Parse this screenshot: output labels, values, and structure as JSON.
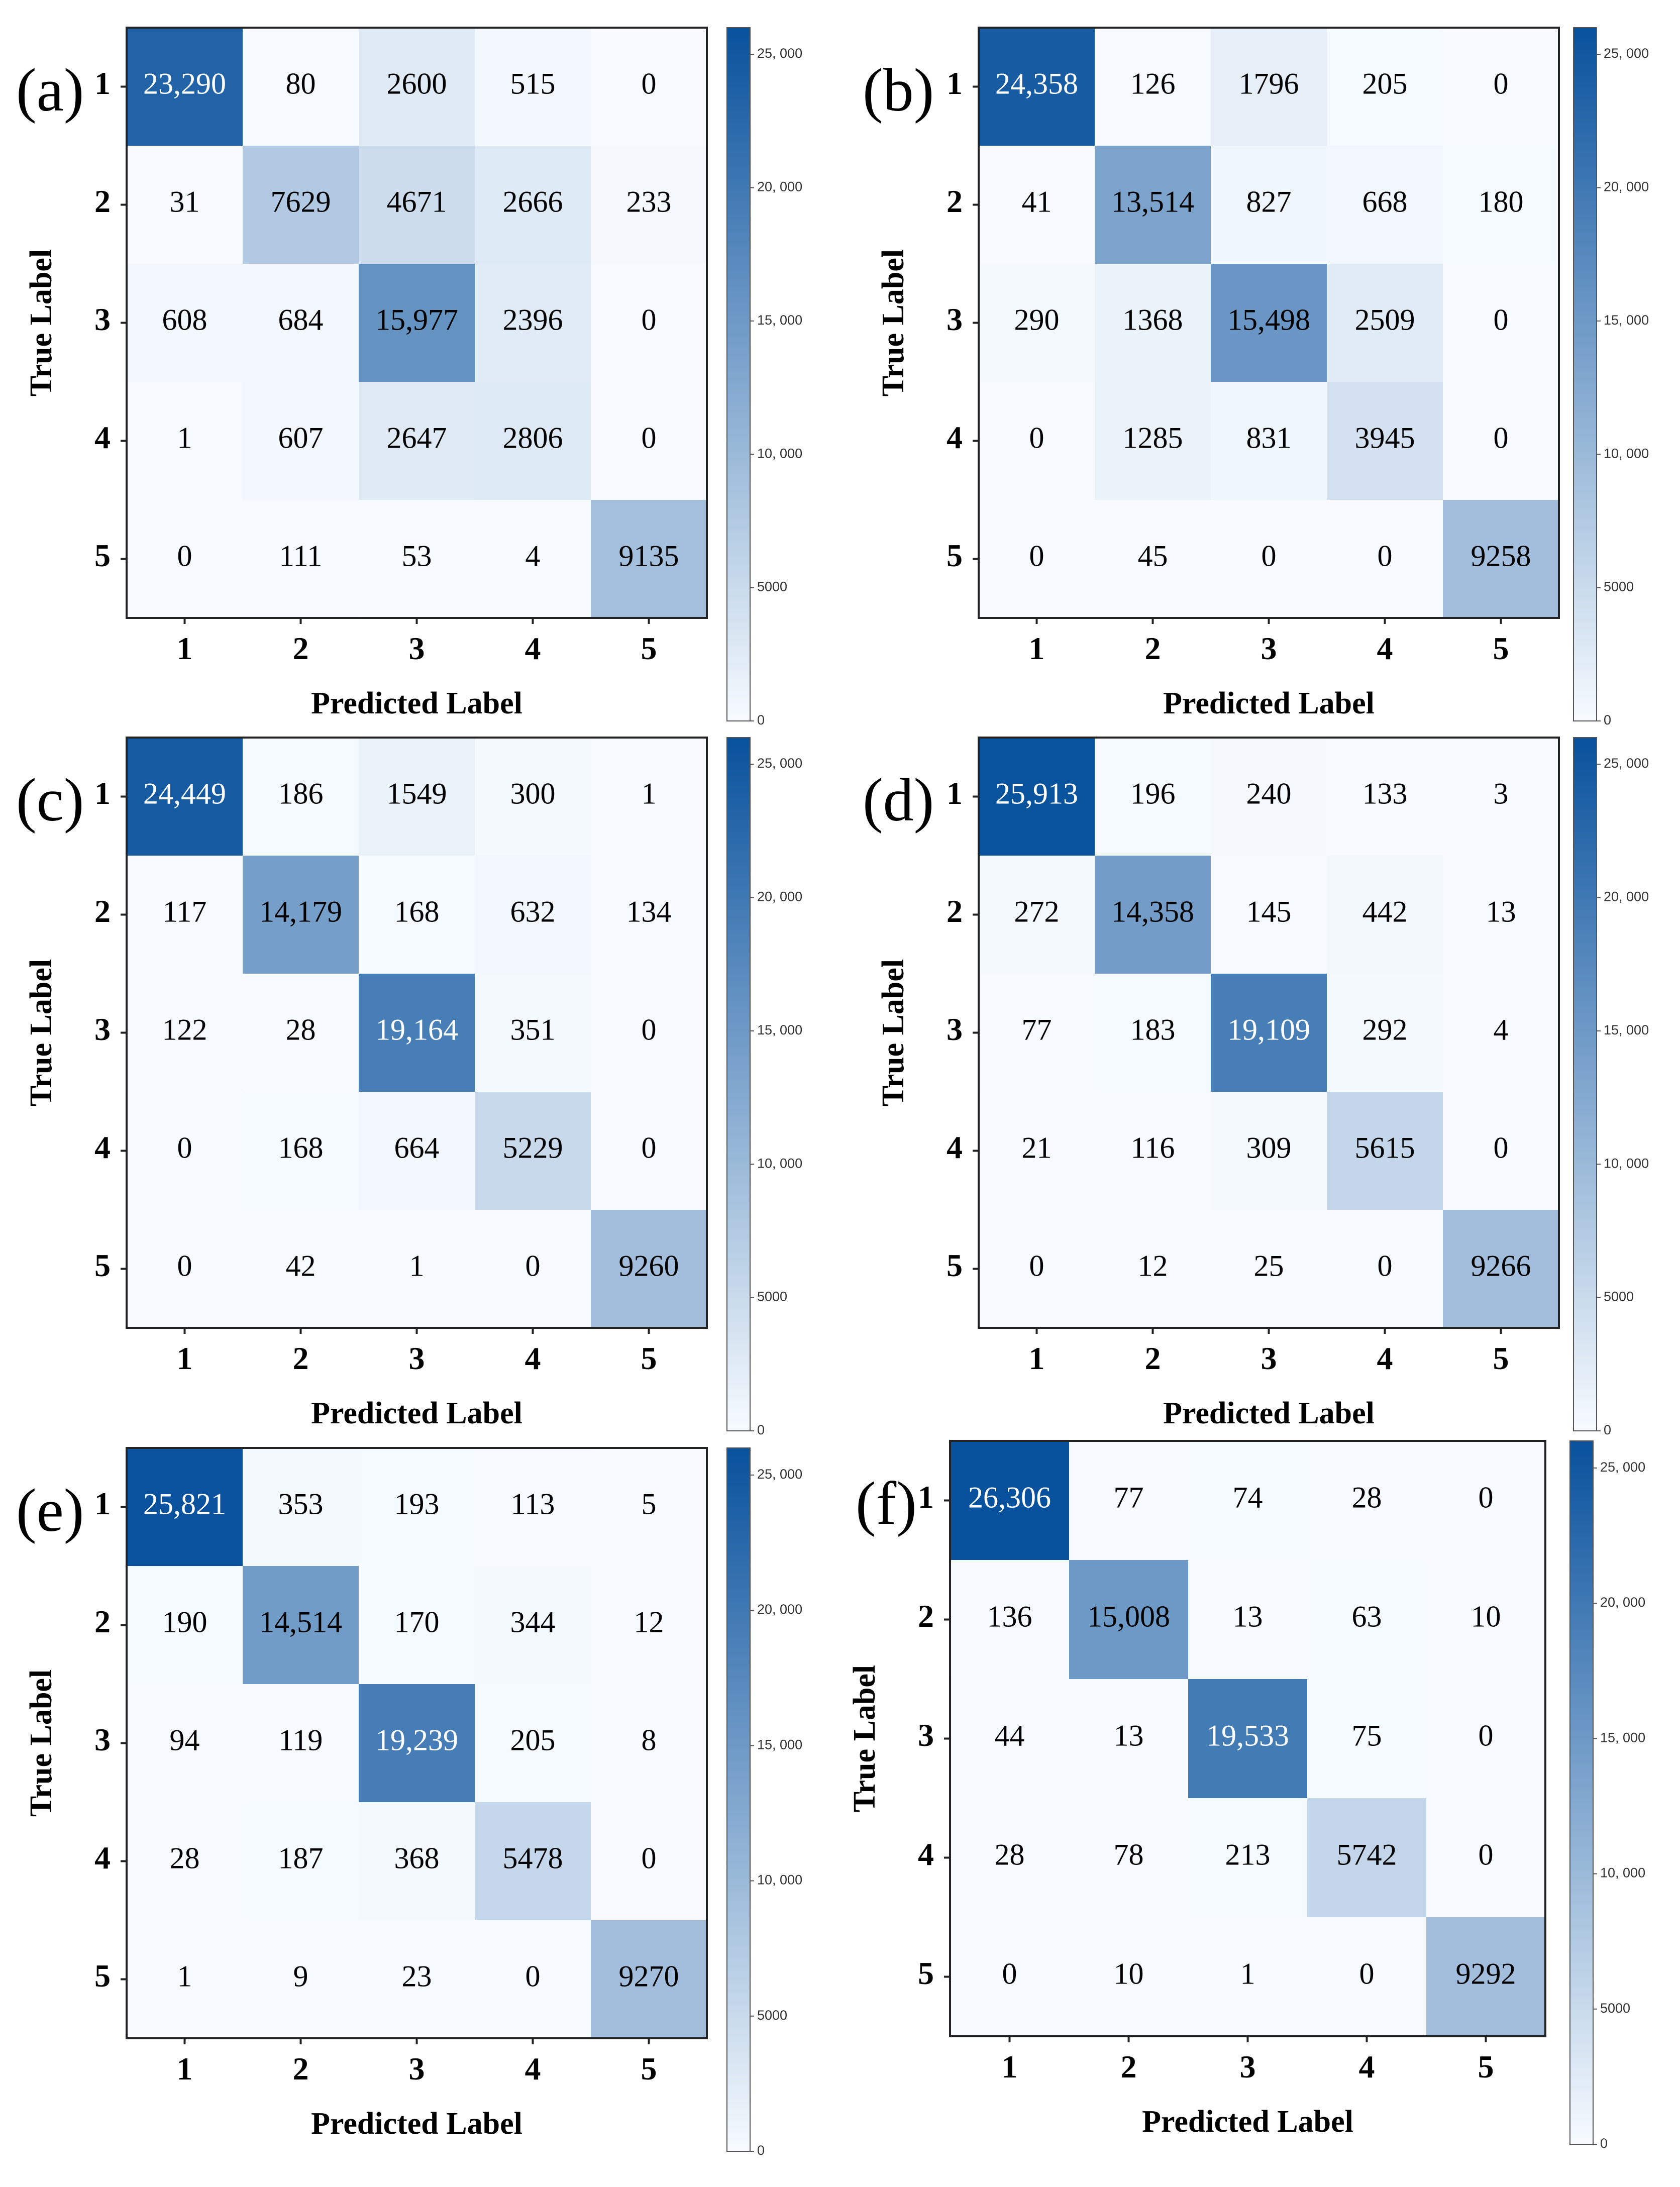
{
  "figure": {
    "colormap": {
      "name": "Blues",
      "low_color": "#f7fbff",
      "high_color": "#08519c",
      "text_light": "#ffffff",
      "text_dark": "#000000"
    }
  },
  "chart_data": [
    {
      "type": "heatmap",
      "panel": "(a)",
      "xlabel": "Predicted Label",
      "ylabel": "True Label",
      "x_categories": [
        "1",
        "2",
        "3",
        "4",
        "5"
      ],
      "y_categories": [
        "1",
        "2",
        "3",
        "4",
        "5"
      ],
      "values": [
        [
          23290,
          80,
          2600,
          515,
          0
        ],
        [
          31,
          7629,
          4671,
          2666,
          233
        ],
        [
          608,
          684,
          15977,
          2396,
          0
        ],
        [
          1,
          607,
          2647,
          2806,
          0
        ],
        [
          0,
          111,
          53,
          4,
          9135
        ]
      ],
      "value_labels": [
        [
          "23,290",
          "80",
          "2600",
          "515",
          "0"
        ],
        [
          "31",
          "7629",
          "4671",
          "2666",
          "233"
        ],
        [
          "608",
          "684",
          "15,977",
          "2396",
          "0"
        ],
        [
          "1",
          "607",
          "2647",
          "2806",
          "0"
        ],
        [
          "0",
          "111",
          "53",
          "4",
          "9135"
        ]
      ],
      "colorbar": {
        "range": [
          0,
          26000
        ],
        "ticks": [
          0,
          5000,
          10000,
          15000,
          20000,
          25000
        ],
        "tick_labels": [
          "0",
          "5000",
          "10, 000",
          "15, 000",
          "20, 000",
          "25, 000"
        ]
      }
    },
    {
      "type": "heatmap",
      "panel": "(b)",
      "xlabel": "Predicted Label",
      "ylabel": "True Label",
      "x_categories": [
        "1",
        "2",
        "3",
        "4",
        "5"
      ],
      "y_categories": [
        "1",
        "2",
        "3",
        "4",
        "5"
      ],
      "values": [
        [
          24358,
          126,
          1796,
          205,
          0
        ],
        [
          41,
          13514,
          827,
          668,
          180
        ],
        [
          290,
          1368,
          15498,
          2509,
          0
        ],
        [
          0,
          1285,
          831,
          3945,
          0
        ],
        [
          0,
          45,
          0,
          0,
          9258
        ]
      ],
      "value_labels": [
        [
          "24,358",
          "126",
          "1796",
          "205",
          "0"
        ],
        [
          "41",
          "13,514",
          "827",
          "668",
          "180"
        ],
        [
          "290",
          "1368",
          "15,498",
          "2509",
          "0"
        ],
        [
          "0",
          "1285",
          "831",
          "3945",
          "0"
        ],
        [
          "0",
          "45",
          "0",
          "0",
          "9258"
        ]
      ],
      "colorbar": {
        "range": [
          0,
          26000
        ],
        "ticks": [
          0,
          5000,
          10000,
          15000,
          20000,
          25000
        ],
        "tick_labels": [
          "0",
          "5000",
          "10, 000",
          "15, 000",
          "20, 000",
          "25, 000"
        ]
      }
    },
    {
      "type": "heatmap",
      "panel": "(c)",
      "xlabel": "Predicted Label",
      "ylabel": "True Label",
      "x_categories": [
        "1",
        "2",
        "3",
        "4",
        "5"
      ],
      "y_categories": [
        "1",
        "2",
        "3",
        "4",
        "5"
      ],
      "values": [
        [
          24449,
          186,
          1549,
          300,
          1
        ],
        [
          117,
          14179,
          168,
          632,
          134
        ],
        [
          122,
          28,
          19164,
          351,
          0
        ],
        [
          0,
          168,
          664,
          5229,
          0
        ],
        [
          0,
          42,
          1,
          0,
          9260
        ]
      ],
      "value_labels": [
        [
          "24,449",
          "186",
          "1549",
          "300",
          "1"
        ],
        [
          "117",
          "14,179",
          "168",
          "632",
          "134"
        ],
        [
          "122",
          "28",
          "19,164",
          "351",
          "0"
        ],
        [
          "0",
          "168",
          "664",
          "5229",
          "0"
        ],
        [
          "0",
          "42",
          "1",
          "0",
          "9260"
        ]
      ],
      "colorbar": {
        "range": [
          0,
          26000
        ],
        "ticks": [
          0,
          5000,
          10000,
          15000,
          20000,
          25000
        ],
        "tick_labels": [
          "0",
          "5000",
          "10, 000",
          "15, 000",
          "20, 000",
          "25, 000"
        ]
      }
    },
    {
      "type": "heatmap",
      "panel": "(d)",
      "xlabel": "Predicted Label",
      "ylabel": "True Label",
      "x_categories": [
        "1",
        "2",
        "3",
        "4",
        "5"
      ],
      "y_categories": [
        "1",
        "2",
        "3",
        "4",
        "5"
      ],
      "values": [
        [
          25913,
          196,
          240,
          133,
          3
        ],
        [
          272,
          14358,
          145,
          442,
          13
        ],
        [
          77,
          183,
          19109,
          292,
          4
        ],
        [
          21,
          116,
          309,
          5615,
          0
        ],
        [
          0,
          12,
          25,
          0,
          9266
        ]
      ],
      "value_labels": [
        [
          "25,913",
          "196",
          "240",
          "133",
          "3"
        ],
        [
          "272",
          "14,358",
          "145",
          "442",
          "13"
        ],
        [
          "77",
          "183",
          "19,109",
          "292",
          "4"
        ],
        [
          "21",
          "116",
          "309",
          "5615",
          "0"
        ],
        [
          "0",
          "12",
          "25",
          "0",
          "9266"
        ]
      ],
      "colorbar": {
        "range": [
          0,
          26000
        ],
        "ticks": [
          0,
          5000,
          10000,
          15000,
          20000,
          25000
        ],
        "tick_labels": [
          "0",
          "5000",
          "10, 000",
          "15, 000",
          "20, 000",
          "25, 000"
        ]
      }
    },
    {
      "type": "heatmap",
      "panel": "(e)",
      "xlabel": "Predicted Label",
      "ylabel": "True Label",
      "x_categories": [
        "1",
        "2",
        "3",
        "4",
        "5"
      ],
      "y_categories": [
        "1",
        "2",
        "3",
        "4",
        "5"
      ],
      "values": [
        [
          25821,
          353,
          193,
          113,
          5
        ],
        [
          190,
          14514,
          170,
          344,
          12
        ],
        [
          94,
          119,
          19239,
          205,
          8
        ],
        [
          28,
          187,
          368,
          5478,
          0
        ],
        [
          1,
          9,
          23,
          0,
          9270
        ]
      ],
      "value_labels": [
        [
          "25,821",
          "353",
          "193",
          "113",
          "5"
        ],
        [
          "190",
          "14,514",
          "170",
          "344",
          "12"
        ],
        [
          "94",
          "119",
          "19,239",
          "205",
          "8"
        ],
        [
          "28",
          "187",
          "368",
          "5478",
          "0"
        ],
        [
          "1",
          "9",
          "23",
          "0",
          "9270"
        ]
      ],
      "colorbar": {
        "range": [
          0,
          26000
        ],
        "ticks": [
          0,
          5000,
          10000,
          15000,
          20000,
          25000
        ],
        "tick_labels": [
          "0",
          "5000",
          "10, 000",
          "15, 000",
          "20, 000",
          "25, 000"
        ]
      }
    },
    {
      "type": "heatmap",
      "panel": "(f)",
      "xlabel": "Predicted Label",
      "ylabel": "True Label",
      "x_categories": [
        "1",
        "2",
        "3",
        "4",
        "5"
      ],
      "y_categories": [
        "1",
        "2",
        "3",
        "4",
        "5"
      ],
      "values": [
        [
          26306,
          77,
          74,
          28,
          0
        ],
        [
          136,
          15008,
          13,
          63,
          10
        ],
        [
          44,
          13,
          19533,
          75,
          0
        ],
        [
          28,
          78,
          213,
          5742,
          0
        ],
        [
          0,
          10,
          1,
          0,
          9292
        ]
      ],
      "value_labels": [
        [
          "26,306",
          "77",
          "74",
          "28",
          "0"
        ],
        [
          "136",
          "15,008",
          "13",
          "63",
          "10"
        ],
        [
          "44",
          "13",
          "19,533",
          "75",
          "0"
        ],
        [
          "28",
          "78",
          "213",
          "5742",
          "0"
        ],
        [
          "0",
          "10",
          "1",
          "0",
          "9292"
        ]
      ],
      "colorbar": {
        "range": [
          0,
          26000
        ],
        "ticks": [
          0,
          5000,
          10000,
          15000,
          20000,
          25000
        ],
        "tick_labels": [
          "0",
          "5000",
          "10, 000",
          "15, 000",
          "20, 000",
          "25, 000"
        ]
      }
    }
  ]
}
